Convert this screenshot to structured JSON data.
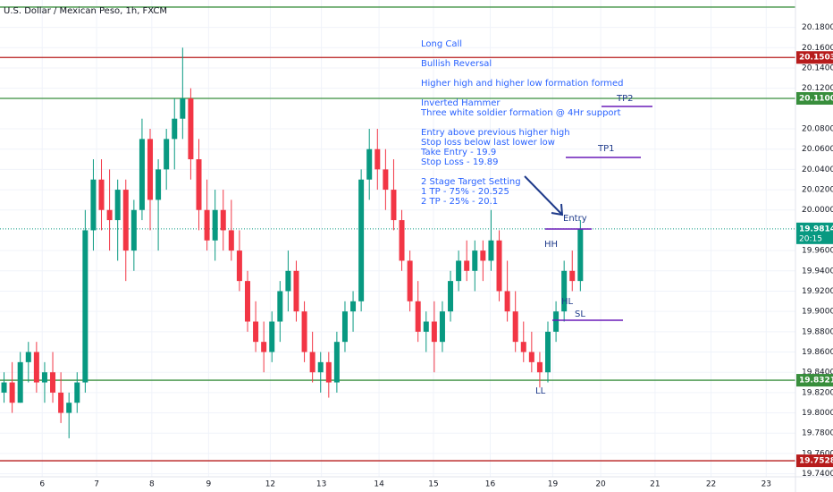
{
  "chart_data": {
    "type": "candlestick",
    "title": "U.S. Dollar / Mexican Peso, 1h, FXCM",
    "up_color": "#089981",
    "down_color": "#f23645",
    "grid": true,
    "ylim": [
      19.737,
      20.207
    ],
    "yticks": [
      {
        "value": 19.74,
        "label": "19.74000"
      },
      {
        "value": 19.76,
        "label": "19.76000"
      },
      {
        "value": 19.78,
        "label": "19.78000"
      },
      {
        "value": 19.8,
        "label": "19.80000"
      },
      {
        "value": 19.82,
        "label": "19.82000"
      },
      {
        "value": 19.84,
        "label": "19.84000"
      },
      {
        "value": 19.86,
        "label": "19.86000"
      },
      {
        "value": 19.88,
        "label": "19.88000"
      },
      {
        "value": 19.9,
        "label": "19.90000"
      },
      {
        "value": 19.92,
        "label": "19.92000"
      },
      {
        "value": 19.94,
        "label": "19.94000"
      },
      {
        "value": 19.96,
        "label": "19.96000"
      },
      {
        "value": 20.0,
        "label": "20.00000"
      },
      {
        "value": 20.02,
        "label": "20.02000"
      },
      {
        "value": 20.04,
        "label": "20.04000"
      },
      {
        "value": 20.06,
        "label": "20.06000"
      },
      {
        "value": 20.08,
        "label": "20.08000"
      },
      {
        "value": 20.12,
        "label": "20.12000"
      },
      {
        "value": 20.14,
        "label": "20.14000"
      },
      {
        "value": 20.16,
        "label": "20.16000"
      },
      {
        "value": 20.18,
        "label": "20.18000"
      }
    ],
    "xlim": [
      0,
      98
    ],
    "xticks": [
      {
        "value": 5.2,
        "label": "6"
      },
      {
        "value": 11.9,
        "label": "7"
      },
      {
        "value": 18.7,
        "label": "8"
      },
      {
        "value": 25.7,
        "label": "9"
      },
      {
        "value": 33.3,
        "label": "12"
      },
      {
        "value": 39.6,
        "label": "13"
      },
      {
        "value": 46.7,
        "label": "14"
      },
      {
        "value": 53.4,
        "label": "15"
      },
      {
        "value": 60.4,
        "label": "16"
      },
      {
        "value": 68.1,
        "label": "19"
      },
      {
        "value": 74,
        "label": "20"
      },
      {
        "value": 80.7,
        "label": "21"
      },
      {
        "value": 87.6,
        "label": "22"
      },
      {
        "value": 94.4,
        "label": "23"
      }
    ],
    "open": [
      19.82,
      19.83,
      19.81,
      19.85,
      19.86,
      19.83,
      19.84,
      19.82,
      19.8,
      19.81,
      19.83,
      19.98,
      20.03,
      20.0,
      19.99,
      20.02,
      19.96,
      20.0,
      20.07,
      20.01,
      20.04,
      20.07,
      20.09,
      20.11,
      20.05,
      20.0,
      19.97,
      20.0,
      19.98,
      19.96,
      19.93,
      19.89,
      19.87,
      19.86,
      19.89,
      19.92,
      19.94,
      19.9,
      19.86,
      19.84,
      19.85,
      19.83,
      19.87,
      19.9,
      19.91,
      20.03,
      20.06,
      20.04,
      20.02,
      19.99,
      19.95,
      19.91,
      19.88,
      19.89,
      19.87,
      19.9,
      19.93,
      19.95,
      19.94,
      19.96,
      19.95,
      19.97,
      19.92,
      19.9,
      19.87,
      19.86,
      19.85,
      19.84,
      19.88,
      19.9,
      19.94,
      19.93
    ],
    "high": [
      19.84,
      19.85,
      19.86,
      19.87,
      19.87,
      19.85,
      19.86,
      19.84,
      19.82,
      19.84,
      20.0,
      20.05,
      20.05,
      20.04,
      20.03,
      20.03,
      20.01,
      20.09,
      20.08,
      20.05,
      20.08,
      20.11,
      20.16,
      20.12,
      20.07,
      20.03,
      20.02,
      20.02,
      20.01,
      19.98,
      19.94,
      19.91,
      19.89,
      19.9,
      19.93,
      19.96,
      19.95,
      19.91,
      19.88,
      19.86,
      19.86,
      19.88,
      19.91,
      19.92,
      20.04,
      20.08,
      20.08,
      20.06,
      20.05,
      20.0,
      19.96,
      19.93,
      19.9,
      19.91,
      19.91,
      19.94,
      19.96,
      19.97,
      19.97,
      19.97,
      20.0,
      19.98,
      19.95,
      19.92,
      19.89,
      19.88,
      19.86,
      19.89,
      19.91,
      19.95,
      19.96,
      19.99
    ],
    "low": [
      19.81,
      19.8,
      19.81,
      19.83,
      19.82,
      19.81,
      19.81,
      19.79,
      19.775,
      19.8,
      19.82,
      19.96,
      19.98,
      19.96,
      19.95,
      19.93,
      19.94,
      19.99,
      19.98,
      19.96,
      20.02,
      20.04,
      20.07,
      20.03,
      19.98,
      19.96,
      19.95,
      19.96,
      19.95,
      19.92,
      19.88,
      19.86,
      19.84,
      19.85,
      19.87,
      19.9,
      19.89,
      19.85,
      19.83,
      19.82,
      19.815,
      19.82,
      19.86,
      19.88,
      19.9,
      20.01,
      20.02,
      20.0,
      19.98,
      19.94,
      19.9,
      19.87,
      19.86,
      19.84,
      19.86,
      19.89,
      19.92,
      19.93,
      19.92,
      19.93,
      19.94,
      19.91,
      19.89,
      19.86,
      19.85,
      19.84,
      19.825,
      19.83,
      19.87,
      19.89,
      19.92,
      19.92
    ],
    "close": [
      19.83,
      19.81,
      19.85,
      19.86,
      19.83,
      19.84,
      19.82,
      19.8,
      19.81,
      19.83,
      19.98,
      20.03,
      20.0,
      19.99,
      20.02,
      19.96,
      20.0,
      20.07,
      20.01,
      20.04,
      20.07,
      20.09,
      20.11,
      20.05,
      20.0,
      19.97,
      20.0,
      19.98,
      19.96,
      19.93,
      19.89,
      19.87,
      19.86,
      19.89,
      19.92,
      19.94,
      19.9,
      19.86,
      19.84,
      19.85,
      19.83,
      19.87,
      19.9,
      19.91,
      20.03,
      20.06,
      20.04,
      20.02,
      19.99,
      19.95,
      19.91,
      19.88,
      19.89,
      19.87,
      19.9,
      19.93,
      19.95,
      19.94,
      19.96,
      19.95,
      19.97,
      19.92,
      19.9,
      19.87,
      19.86,
      19.85,
      19.84,
      19.88,
      19.9,
      19.94,
      19.93,
      19.9814
    ],
    "levels": [
      {
        "value": 20.2,
        "color": "#388e3c"
      },
      {
        "value": 20.15035,
        "label": "20.15035",
        "color": "#b71c1c"
      },
      {
        "value": 20.11001,
        "label": "20.11001",
        "color": "#388e3c"
      },
      {
        "value": 19.83219,
        "label": "19.83219",
        "color": "#388e3c"
      },
      {
        "value": 19.7528,
        "label": "19.75280",
        "color": "#b71c1c"
      }
    ],
    "current_price": {
      "value": 19.9814,
      "label": "19.98140",
      "countdown": "20:15",
      "color": "#089981"
    },
    "notes": [
      [
        "Long Call"
      ],
      [
        "Bullish Reversal"
      ],
      [
        "Higher high and higher low formation formed"
      ],
      [
        "Inverted Hammer",
        "Three white soldier formation @ 4Hr support"
      ],
      [
        "Entry above previous higher high",
        "Stop loss below last lower low",
        "Take Entry - 19.9",
        "Stop Loss - 19.89"
      ],
      [
        "2 Stage Target Setting",
        "1 TP - 75% - 20.525",
        "2 TP - 25% - 20.1"
      ]
    ],
    "markers": {
      "tp2": "TP2",
      "tp1": "TP1",
      "entry": "Entry",
      "sl": "SL",
      "hh": "HH",
      "hl": "HL",
      "ll": "LL"
    }
  }
}
